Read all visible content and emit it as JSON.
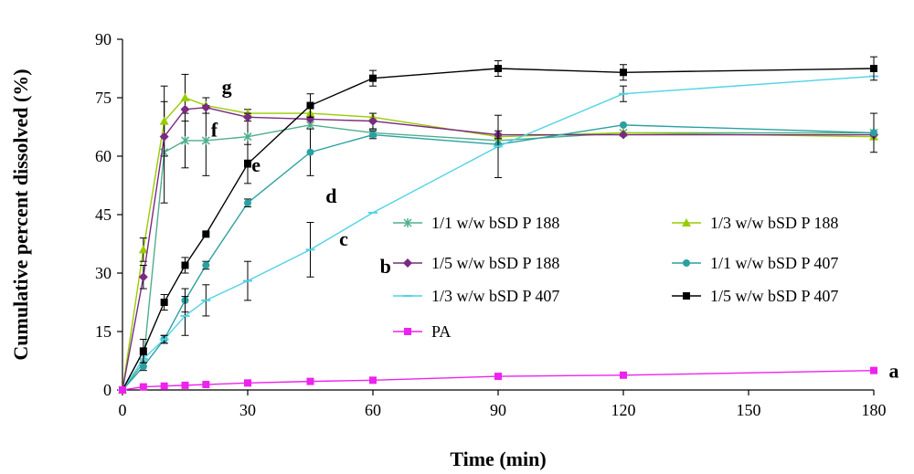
{
  "chart_data": {
    "type": "line",
    "xlabel": "Time (min)",
    "ylabel": "Cumulative percent dissolved (%)",
    "xlim": [
      0,
      180
    ],
    "ylim": [
      0,
      90
    ],
    "xticks": [
      0,
      30,
      60,
      90,
      120,
      150,
      180
    ],
    "yticks": [
      0,
      15,
      30,
      45,
      60,
      75,
      90
    ],
    "grid": false,
    "legend_position": "right",
    "series": [
      {
        "name": "1/1 w/w bSD P 188",
        "color": "#4fae8e",
        "marker": "star",
        "label": "e",
        "x": [
          0,
          5,
          10,
          15,
          20,
          30,
          45,
          60,
          90,
          120,
          180
        ],
        "y": [
          0,
          7,
          61,
          64,
          64,
          65,
          68,
          66,
          64,
          66,
          66
        ],
        "err": [
          0,
          0,
          13,
          7,
          9,
          6,
          0,
          1,
          0,
          0,
          0
        ]
      },
      {
        "name": "1/3 w/w bSD P 188",
        "color": "#99cc00",
        "marker": "triangle",
        "label": "g",
        "x": [
          0,
          5,
          10,
          15,
          20,
          30,
          45,
          60,
          90,
          120,
          180
        ],
        "y": [
          0,
          36,
          69,
          75,
          73,
          71,
          71,
          70,
          65,
          66,
          65
        ],
        "err": [
          0,
          3,
          9,
          6,
          2,
          1,
          0,
          0,
          0,
          0,
          0
        ]
      },
      {
        "name": "1/5 w/w bSD P 188",
        "color": "#7a2a82",
        "marker": "diamond",
        "label": "f",
        "x": [
          0,
          5,
          10,
          15,
          20,
          30,
          45,
          60,
          90,
          120,
          180
        ],
        "y": [
          0,
          29,
          65,
          72,
          72.5,
          70,
          69.5,
          69,
          65.5,
          65.5,
          65.5
        ],
        "err": [
          0,
          3,
          0,
          0,
          0,
          1,
          0,
          2,
          1,
          0,
          0
        ]
      },
      {
        "name": "1/1 w/w bSD P 407",
        "color": "#2aa1a1",
        "marker": "circle",
        "label": "c",
        "x": [
          0,
          5,
          10,
          15,
          20,
          30,
          45,
          60,
          90,
          120,
          180
        ],
        "y": [
          0,
          6,
          13,
          23,
          32,
          48,
          61,
          65.5,
          63,
          68,
          66
        ],
        "err": [
          0,
          1,
          1,
          3,
          1,
          1,
          6,
          1,
          0,
          0,
          5
        ]
      },
      {
        "name": "1/3 w/w bSD P 407",
        "color": "#4fd3e6",
        "marker": "dash",
        "label": "b",
        "x": [
          0,
          5,
          10,
          15,
          20,
          30,
          45,
          60,
          90,
          120,
          180
        ],
        "y": [
          0,
          8,
          13,
          19,
          23,
          28,
          36,
          45.5,
          62.5,
          76,
          80.5
        ],
        "err": [
          0,
          1,
          1,
          5,
          4,
          5,
          7,
          0,
          8,
          2,
          0
        ]
      },
      {
        "name": "1/5 w/w bSD P 407",
        "color": "#000000",
        "marker": "square",
        "label": "d",
        "x": [
          0,
          5,
          10,
          15,
          20,
          30,
          45,
          60,
          90,
          120,
          180
        ],
        "y": [
          0,
          10,
          22.5,
          32,
          40,
          58,
          73,
          80,
          82.5,
          81.5,
          82.5
        ],
        "err": [
          0,
          3,
          2,
          2,
          0,
          5,
          3,
          2,
          2,
          2,
          3
        ]
      },
      {
        "name": "PA",
        "color": "#ee22ee",
        "marker": "square",
        "label": "a",
        "x": [
          0,
          5,
          10,
          15,
          20,
          30,
          45,
          60,
          90,
          120,
          180
        ],
        "y": [
          0,
          0.8,
          1,
          1.2,
          1.4,
          1.8,
          2.2,
          2.5,
          3.5,
          3.8,
          5
        ],
        "err": [
          0,
          0,
          0,
          0,
          0,
          0,
          0,
          0,
          0,
          0,
          0
        ]
      }
    ]
  }
}
